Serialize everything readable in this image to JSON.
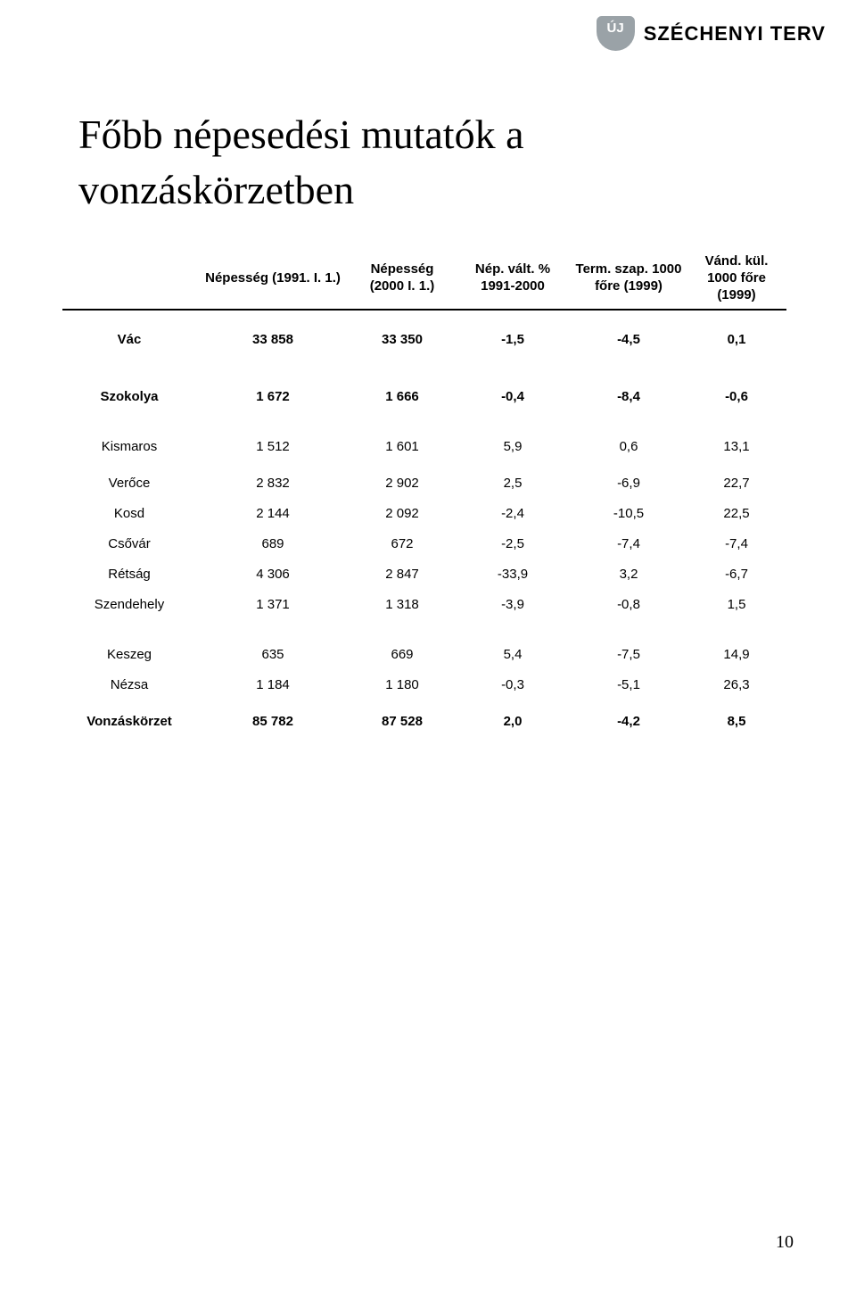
{
  "logo": {
    "badge_text": "ÚJ",
    "brand_text": "SZÉCHENYI TERV",
    "badge_bg": "#9aa2a7",
    "badge_fg": "#ffffff"
  },
  "title_line1": "Főbb népesedési mutatók a",
  "title_line2": "vonzáskörzetben",
  "columns": [
    "",
    "Népesség (1991. I. 1.)",
    "Népesség (2000 I. 1.)",
    "Nép. vált. % 1991-2000",
    "Term. szap. 1000 főre (1999)",
    "Vánd. kül. 1000 főre (1999)"
  ],
  "rows": [
    {
      "label": "Vác",
      "v": [
        "33 858",
        "33 350",
        "-1,5",
        "-4,5",
        "0,1"
      ],
      "class": "h64 bold"
    },
    {
      "label": "Szokolya",
      "v": [
        "1 672",
        "1 666",
        "-0,4",
        "-8,4",
        "-0,6"
      ],
      "class": "h64 bold"
    },
    {
      "label": "Kismaros",
      "v": [
        "1 512",
        "1 601",
        "5,9",
        "0,6",
        "13,1"
      ],
      "class": "h48"
    },
    {
      "label": "Verőce",
      "v": [
        "2 832",
        "2 902",
        "2,5",
        "-6,9",
        "22,7"
      ],
      "class": "h34"
    },
    {
      "label": "Kosd",
      "v": [
        "2 144",
        "2 092",
        "-2,4",
        "-10,5",
        "22,5"
      ],
      "class": "h34"
    },
    {
      "label": "Csővár",
      "v": [
        "689",
        "672",
        "-2,5",
        "-7,4",
        "-7,4"
      ],
      "class": "h34"
    },
    {
      "label": "Rétság",
      "v": [
        "4 306",
        "2 847",
        "-33,9",
        "3,2",
        "-6,7"
      ],
      "class": "h34"
    },
    {
      "label": "Szendehely",
      "v": [
        "1 371",
        "1 318",
        "-3,9",
        "-0,8",
        "1,5"
      ],
      "class": "h34"
    },
    {
      "label": "Keszeg",
      "v": [
        "635",
        "669",
        "5,4",
        "-7,5",
        "14,9"
      ],
      "class": "h34 extra-top"
    },
    {
      "label": "Nézsa",
      "v": [
        "1 184",
        "1 180",
        "-0,3",
        "-5,1",
        "26,3"
      ],
      "class": "h34"
    },
    {
      "label": "Vonzáskörzet",
      "v": [
        "85 782",
        "87 528",
        "2,0",
        "-4,2",
        "8,5"
      ],
      "class": "h48 bold"
    }
  ],
  "page_number": "10"
}
